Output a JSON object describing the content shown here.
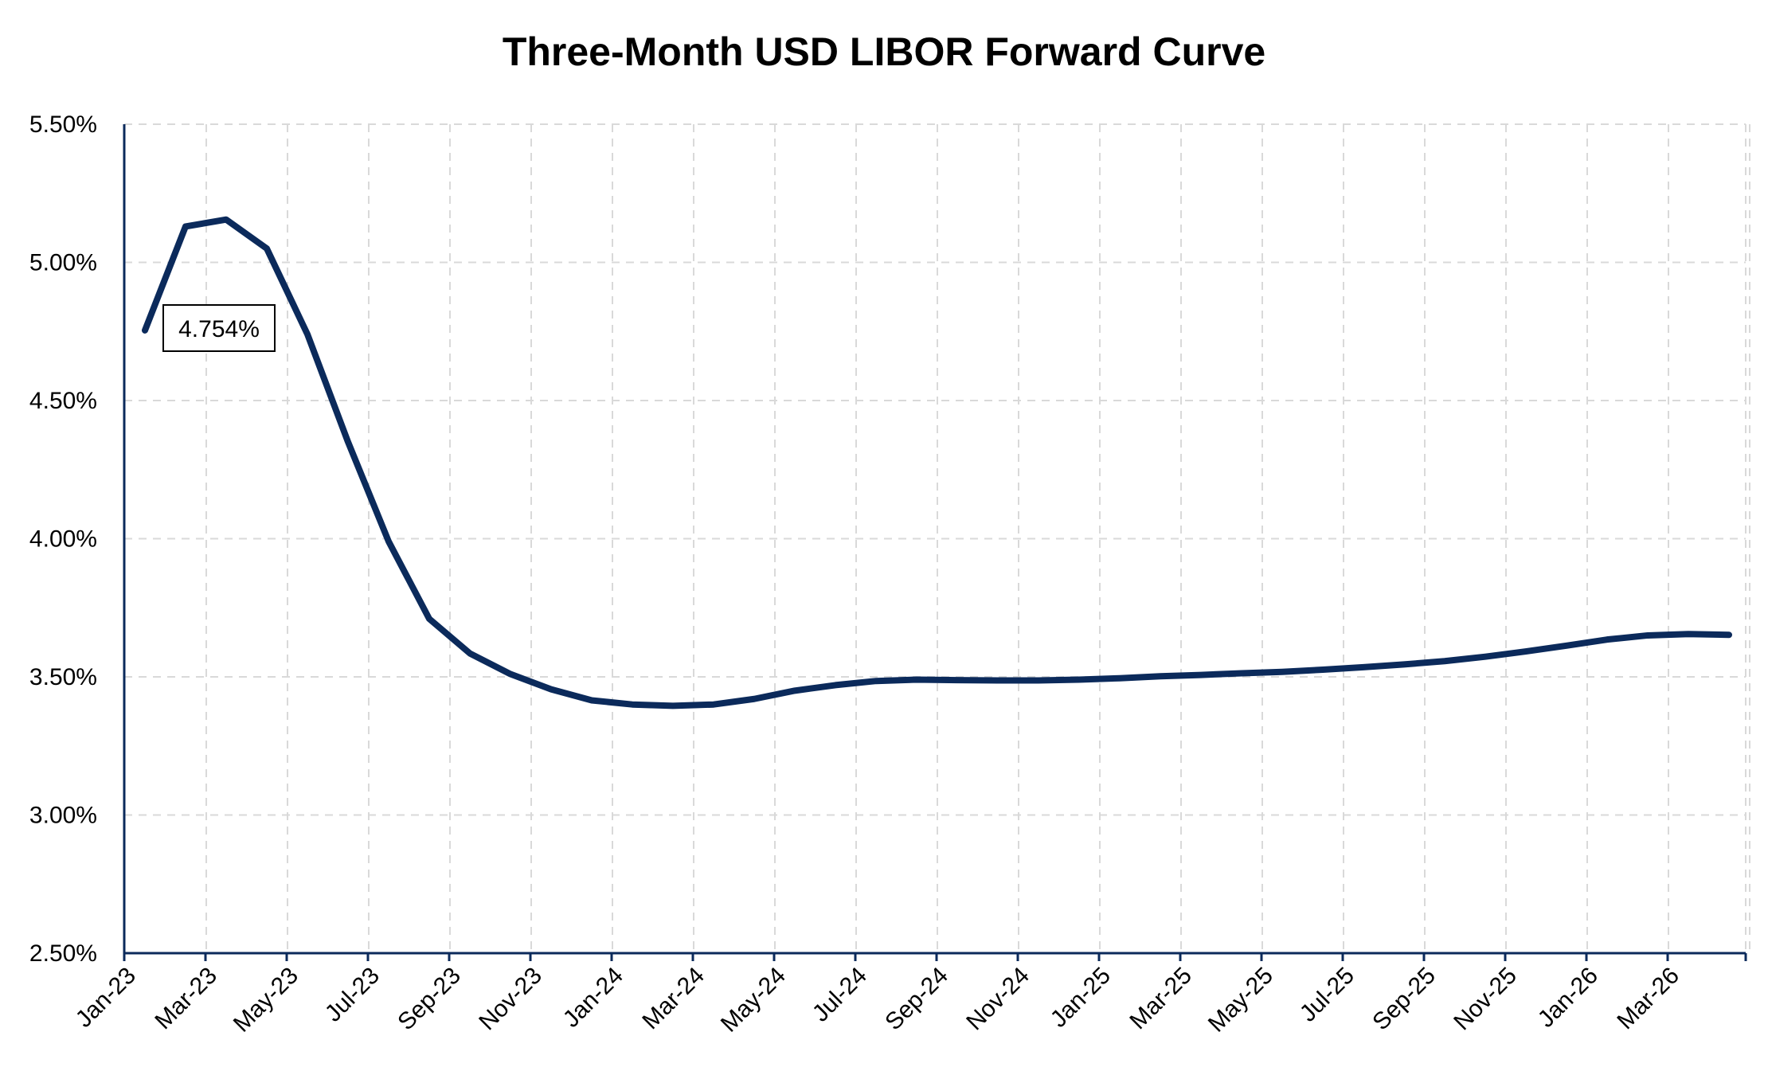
{
  "chart_data": {
    "type": "line",
    "title": "Three-Month USD LIBOR Forward Curve",
    "xlabel": "",
    "ylabel": "",
    "ylim": [
      2.5,
      5.5
    ],
    "y_ticks": [
      "2.50%",
      "3.00%",
      "3.50%",
      "4.00%",
      "4.50%",
      "5.00%",
      "5.50%"
    ],
    "x_tick_labels": [
      "Jan-23",
      "Mar-23",
      "May-23",
      "Jul-23",
      "Sep-23",
      "Nov-23",
      "Jan-24",
      "Mar-24",
      "May-24",
      "Jul-24",
      "Sep-24",
      "Nov-24",
      "Jan-25",
      "Mar-25",
      "May-25",
      "Jul-25",
      "Sep-25",
      "Nov-25",
      "Jan-26",
      "Mar-26"
    ],
    "grid": true,
    "legend": "none",
    "colors": {
      "series": "#0b2a5b",
      "axis": "#0b2a5b",
      "grid": "#d9d9d9"
    },
    "annotation": {
      "label": "4.754%",
      "x": "Jan-23",
      "value": 4.754
    },
    "series": [
      {
        "x": [
          "Jan-23",
          "Feb-23",
          "Mar-23",
          "Apr-23",
          "May-23",
          "Jun-23",
          "Jul-23",
          "Aug-23",
          "Sep-23",
          "Oct-23",
          "Nov-23",
          "Dec-23",
          "Jan-24",
          "Feb-24",
          "Mar-24",
          "Apr-24",
          "May-24",
          "Jun-24",
          "Jul-24",
          "Aug-24",
          "Sep-24",
          "Oct-24",
          "Nov-24",
          "Dec-24",
          "Jan-25",
          "Feb-25",
          "Mar-25",
          "Apr-25",
          "May-25",
          "Jun-25",
          "Jul-25",
          "Aug-25",
          "Sep-25",
          "Oct-25",
          "Nov-25",
          "Dec-25",
          "Jan-26",
          "Feb-26",
          "Mar-26",
          "Apr-26"
        ],
        "values": [
          4.754,
          5.13,
          5.155,
          5.05,
          4.74,
          4.35,
          3.99,
          3.71,
          3.585,
          3.51,
          3.455,
          3.415,
          3.4,
          3.395,
          3.4,
          3.42,
          3.45,
          3.47,
          3.485,
          3.49,
          3.488,
          3.487,
          3.487,
          3.49,
          3.495,
          3.502,
          3.507,
          3.513,
          3.518,
          3.526,
          3.535,
          3.545,
          3.557,
          3.573,
          3.592,
          3.613,
          3.635,
          3.65,
          3.655,
          3.652
        ]
      }
    ]
  }
}
